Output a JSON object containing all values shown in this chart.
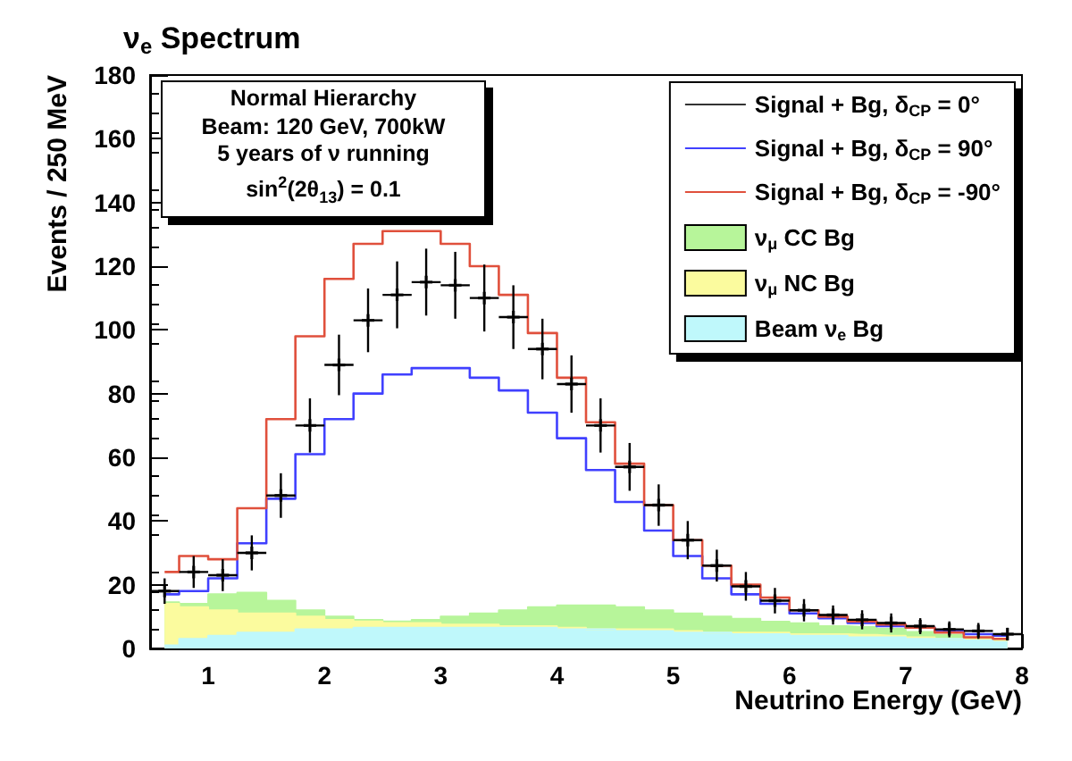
{
  "chart_data": {
    "type": "step",
    "title": "ν$_{e}$ Spectrum",
    "xlabel": "Neutrino Energy (GeV)",
    "ylabel": "Events / 250 MeV",
    "annotations": [
      "Normal Hierarchy",
      "Beam: 120 GeV, 700kW",
      "5 years of ν running",
      "sin$^{2}$(2θ$_{13}$) = 0.1"
    ],
    "x": [
      0.625,
      0.875,
      1.125,
      1.375,
      1.625,
      1.875,
      2.125,
      2.375,
      2.625,
      2.875,
      3.125,
      3.375,
      3.625,
      3.875,
      4.125,
      4.375,
      4.625,
      4.875,
      5.125,
      5.375,
      5.625,
      5.875,
      6.125,
      6.375,
      6.625,
      6.875,
      7.125,
      7.375,
      7.625,
      7.875
    ],
    "xlim": [
      0.5,
      8
    ],
    "xticks": [
      1,
      2,
      3,
      4,
      5,
      6,
      7,
      8
    ],
    "ylim": [
      0,
      180
    ],
    "yticks": [
      0,
      20,
      40,
      60,
      80,
      100,
      120,
      140,
      160,
      180
    ],
    "legend": "top right",
    "grid": false,
    "stacked": true,
    "series": [
      {
        "name": "Signal + Bg, δ$_{CP}$ = 0°",
        "color": "#000000",
        "type": "scatter",
        "marker": "cross",
        "values": [
          18,
          24,
          23,
          30,
          48,
          70,
          89,
          103,
          111,
          115,
          114,
          110,
          104,
          94,
          83,
          70,
          57,
          45,
          34,
          26,
          19.5,
          15,
          12,
          10.5,
          9,
          8,
          7,
          6,
          5.5,
          4.5
        ],
        "errors": [
          4,
          5,
          5,
          5.5,
          7,
          8.5,
          9.5,
          10,
          10.5,
          10.5,
          10.5,
          10.5,
          10,
          9.5,
          9,
          8.5,
          7.5,
          6.5,
          6,
          5,
          4.5,
          4,
          3.5,
          3,
          3,
          3,
          2.5,
          2.5,
          2.5,
          2
        ],
        "xerrors": [
          0.125,
          0.125,
          0.125,
          0.125,
          0.125,
          0.125,
          0.125,
          0.125,
          0.125,
          0.125,
          0.125,
          0.125,
          0.125,
          0.125,
          0.125,
          0.125,
          0.125,
          0.125,
          0.125,
          0.125,
          0.125,
          0.125,
          0.125,
          0.125,
          0.125,
          0.125,
          0.125,
          0.125,
          0.125,
          0.125
        ]
      },
      {
        "name": "Signal + Bg, δ$_{CP}$ = 90°",
        "color": "#4040ff",
        "values": [
          17,
          18,
          22,
          33,
          47,
          61,
          72,
          80,
          86,
          88,
          88,
          85,
          81,
          74,
          66,
          56,
          46,
          37,
          29,
          22,
          17,
          14,
          11,
          9.5,
          8,
          7,
          6.5,
          5.5,
          4.5,
          4
        ]
      },
      {
        "name": "Signal + Bg, δ$_{CP}$ = -90°",
        "color": "#e0503c",
        "values": [
          24,
          29,
          28,
          44,
          72,
          98,
          116,
          127,
          131,
          131,
          127,
          120,
          111,
          99,
          85,
          71,
          58,
          45,
          34,
          26,
          20,
          16,
          12,
          10,
          8.5,
          7.5,
          6.5,
          5,
          3.5,
          3
        ]
      },
      {
        "name": "Beam ν$_{e}$ Bg",
        "color": "#bff8fb",
        "type": "area",
        "values": [
          1,
          3,
          4,
          5,
          5,
          6,
          6,
          6.5,
          6.5,
          6.5,
          6.5,
          6.5,
          6.5,
          6.5,
          6,
          6,
          5.5,
          5.5,
          5,
          5,
          4.5,
          4.5,
          4,
          4,
          3.5,
          3.5,
          3,
          3,
          2.5,
          2
        ]
      },
      {
        "name": "ν$_{μ}$ NC Bg",
        "color": "#fbfb9e",
        "type": "area",
        "values": [
          13,
          10,
          8,
          6,
          6,
          4,
          3,
          2,
          1.5,
          1.5,
          1,
          1,
          0.5,
          0.5,
          0.5,
          0,
          0.5,
          0.5,
          0.5,
          0,
          0.5,
          0.5,
          0.5,
          0.5,
          0.8,
          0.5,
          0.5,
          0,
          0.3,
          0.4
        ]
      },
      {
        "name": "ν$_{μ}$ CC Bg",
        "color": "#b7f59a",
        "type": "area",
        "values": [
          0.5,
          1,
          5,
          6.5,
          4,
          2,
          1,
          0.5,
          0.5,
          1,
          2.5,
          3.5,
          5,
          6,
          7,
          7.5,
          7,
          6,
          5.5,
          5,
          4.3,
          3.4,
          3.4,
          2.5,
          2.4,
          2.2,
          1.7,
          1.3,
          0.6,
          0.4
        ]
      }
    ]
  }
}
